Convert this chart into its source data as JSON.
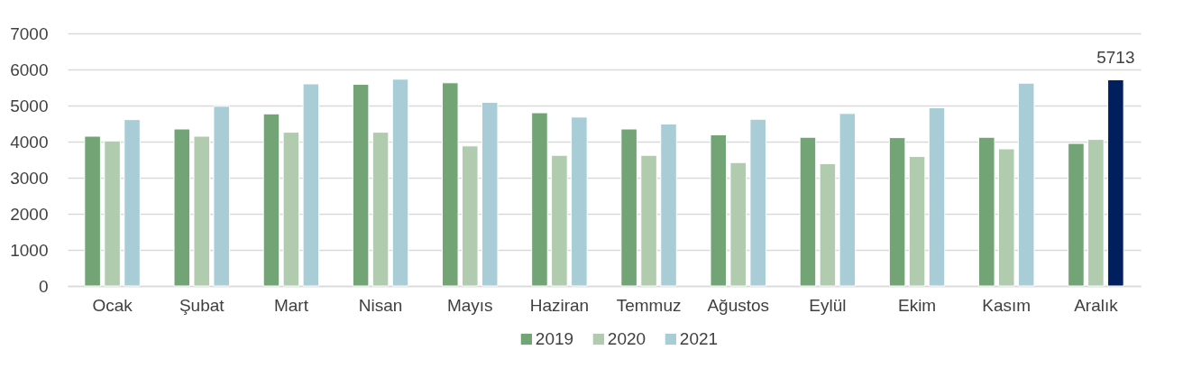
{
  "chart_data": {
    "type": "bar",
    "categories": [
      "Ocak",
      "Şubat",
      "Mart",
      "Nisan",
      "Mayıs",
      "Haziran",
      "Temmuz",
      "Ağustos",
      "Eylül",
      "Ekim",
      "Kasım",
      "Aralık"
    ],
    "series": [
      {
        "name": "2019",
        "color": "#72a476",
        "values": [
          4150,
          4350,
          4770,
          5590,
          5630,
          4800,
          4350,
          4190,
          4120,
          4110,
          4120,
          3950
        ]
      },
      {
        "name": "2020",
        "color": "#b0cbae",
        "values": [
          4020,
          4150,
          4260,
          4260,
          3880,
          3620,
          3620,
          3420,
          3390,
          3590,
          3800,
          4060
        ]
      },
      {
        "name": "2021",
        "color": "#a9cdd7",
        "colors": [
          "#a9cdd7",
          "#a9cdd7",
          "#a9cdd7",
          "#a9cdd7",
          "#a9cdd7",
          "#a9cdd7",
          "#a9cdd7",
          "#a9cdd7",
          "#a9cdd7",
          "#a9cdd7",
          "#a9cdd7",
          "#001f5f"
        ],
        "values": [
          4610,
          4980,
          5600,
          5730,
          5090,
          4680,
          4490,
          4620,
          4780,
          4940,
          5620,
          5713
        ],
        "value_labels": [
          null,
          null,
          null,
          null,
          null,
          null,
          null,
          null,
          null,
          null,
          null,
          "5713"
        ]
      }
    ],
    "ylim": [
      0,
      7000
    ],
    "yticks": [
      0,
      1000,
      2000,
      3000,
      4000,
      5000,
      6000,
      7000
    ],
    "grid": "y",
    "legend": "bottom"
  }
}
